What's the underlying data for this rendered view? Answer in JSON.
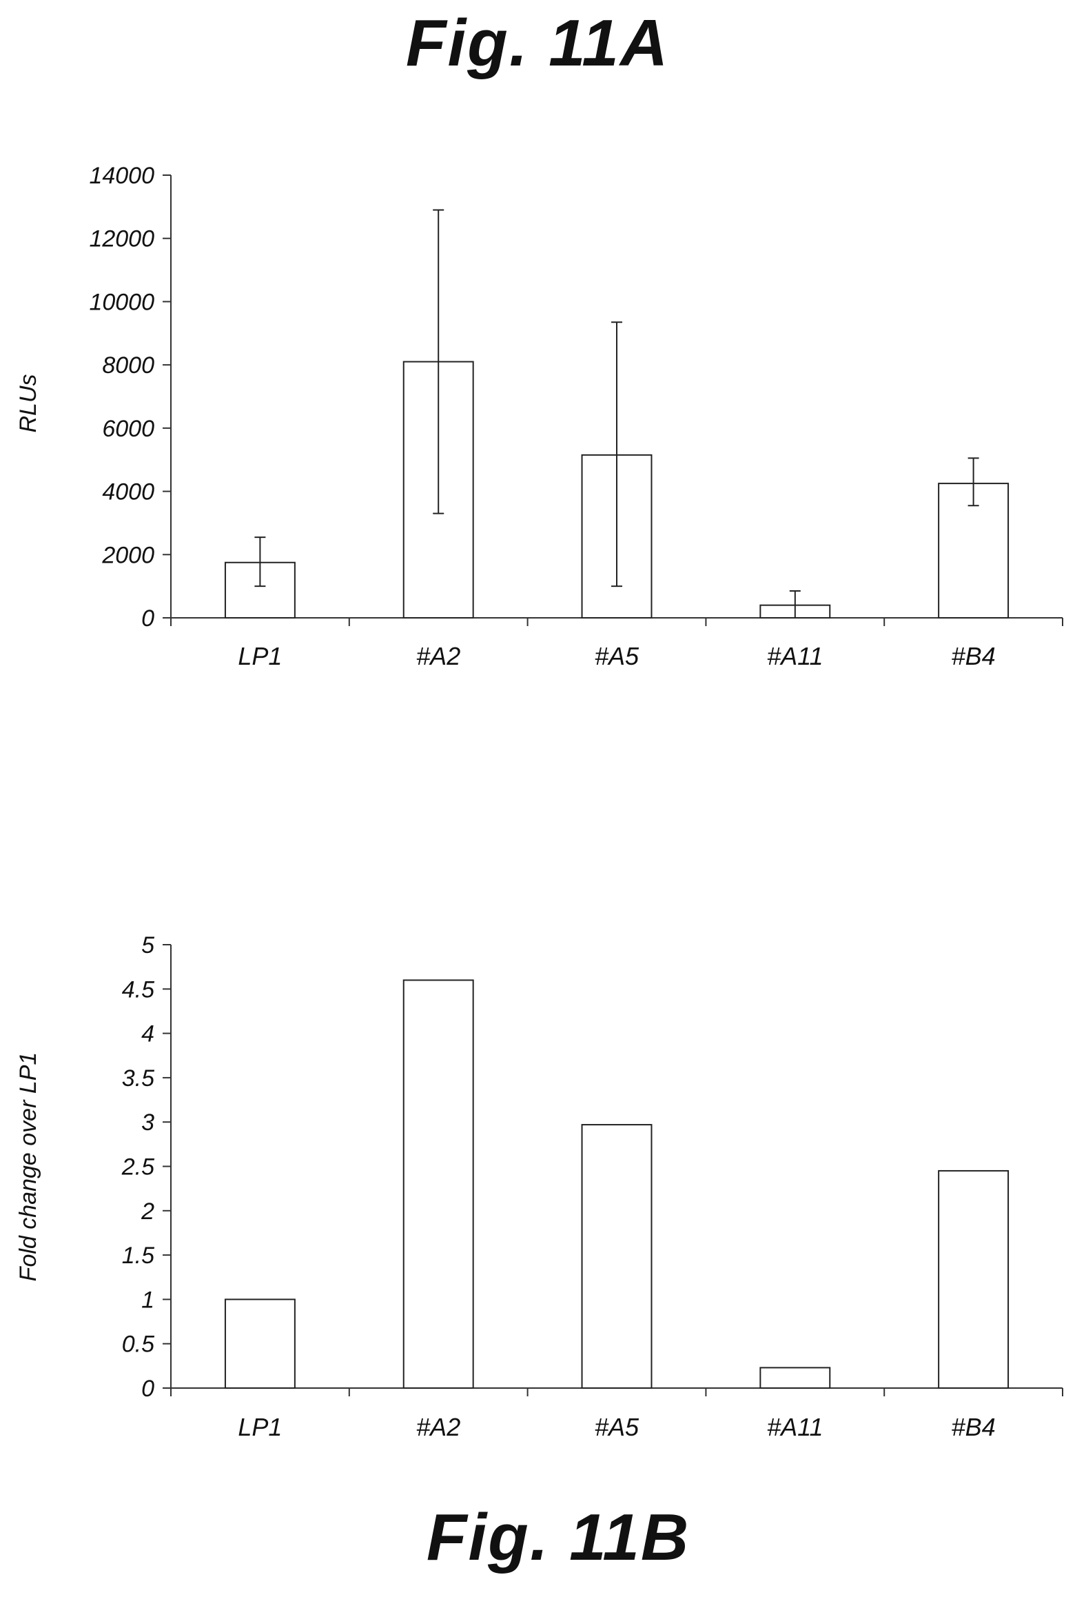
{
  "figures": {
    "a_title": "Fig. 11A",
    "b_title": "Fig. 11B"
  },
  "chart_data": [
    {
      "type": "bar",
      "title": "Fig. 11A",
      "xlabel": "",
      "ylabel": "RLUs",
      "categories": [
        "LP1",
        "#A2",
        "#A5",
        "#A11",
        "#B4"
      ],
      "values": [
        1750,
        8100,
        5150,
        400,
        4250
      ],
      "error_low": [
        1000,
        3300,
        1000,
        0,
        3550
      ],
      "error_high": [
        2550,
        12900,
        9350,
        850,
        5050
      ],
      "ylim": [
        0,
        14000
      ],
      "yticks": [
        0,
        2000,
        4000,
        6000,
        8000,
        10000,
        12000,
        14000
      ],
      "grid": false
    },
    {
      "type": "bar",
      "title": "Fig. 11B",
      "xlabel": "",
      "ylabel": "Fold change over LP1",
      "categories": [
        "LP1",
        "#A2",
        "#A5",
        "#A11",
        "#B4"
      ],
      "values": [
        1.0,
        4.6,
        2.97,
        0.23,
        2.45
      ],
      "ylim": [
        0,
        5
      ],
      "yticks": [
        "0",
        "0.5",
        "1",
        "1.5",
        "2",
        "2.5",
        "3",
        "3.5",
        "4",
        "4.5",
        "5"
      ],
      "grid": false
    }
  ]
}
